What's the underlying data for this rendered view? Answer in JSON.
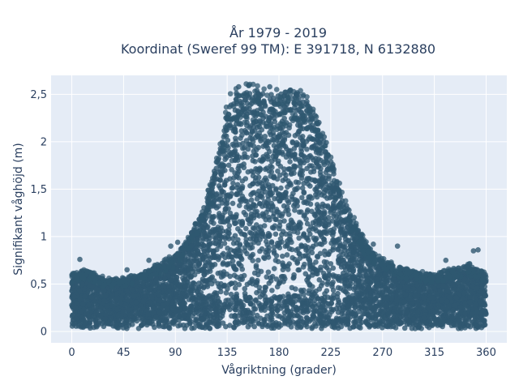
{
  "chart_data": {
    "type": "scatter",
    "title_line1": "År 1979 - 2019",
    "title_line2": "Koordinat (Sweref 99 TM): E 391718, N 6132880",
    "xlabel": "Vågriktning (grader)",
    "ylabel": "Signifikant våghöjd (m)",
    "xlim": [
      -18,
      378
    ],
    "ylim": [
      -0.12,
      2.7
    ],
    "x_ticks": [
      0,
      45,
      90,
      135,
      180,
      225,
      270,
      315,
      360
    ],
    "x_tick_labels": [
      "0",
      "45",
      "90",
      "135",
      "180",
      "225",
      "270",
      "315",
      "360"
    ],
    "y_ticks": [
      0,
      0.5,
      1,
      1.5,
      2,
      2.5
    ],
    "y_tick_labels": [
      "0",
      "0,5",
      "1",
      "1,5",
      "2",
      "2,5"
    ],
    "grid": true,
    "legend": "none",
    "marker_color": "#2f5870",
    "background": "#e5ecf6",
    "envelope": {
      "x": [
        0,
        10,
        20,
        30,
        45,
        60,
        75,
        90,
        100,
        110,
        120,
        125,
        130,
        135,
        140,
        150,
        160,
        170,
        180,
        190,
        200,
        210,
        215,
        220,
        225,
        230,
        240,
        250,
        260,
        270,
        280,
        290,
        300,
        315,
        330,
        345,
        360
      ],
      "y": [
        0.6,
        0.65,
        0.6,
        0.55,
        0.55,
        0.6,
        0.7,
        0.8,
        0.95,
        1.2,
        1.5,
        1.75,
        2.0,
        2.35,
        2.5,
        2.55,
        2.55,
        2.5,
        2.5,
        2.55,
        2.5,
        2.35,
        2.2,
        2.05,
        1.85,
        1.6,
        1.3,
        1.05,
        0.85,
        0.75,
        0.7,
        0.65,
        0.62,
        0.6,
        0.65,
        0.7,
        0.6
      ]
    },
    "outliers": [
      {
        "x": 7,
        "y": 0.76
      },
      {
        "x": 48,
        "y": 0.65
      },
      {
        "x": 67,
        "y": 0.75
      },
      {
        "x": 86,
        "y": 0.9
      },
      {
        "x": 92,
        "y": 0.94
      },
      {
        "x": 145,
        "y": 2.58
      },
      {
        "x": 172,
        "y": 2.58
      },
      {
        "x": 262,
        "y": 0.92
      },
      {
        "x": 283,
        "y": 0.9
      },
      {
        "x": 325,
        "y": 0.75
      },
      {
        "x": 349,
        "y": 0.85
      },
      {
        "x": 353,
        "y": 0.86
      },
      {
        "x": 358,
        "y": 0.6
      }
    ]
  }
}
